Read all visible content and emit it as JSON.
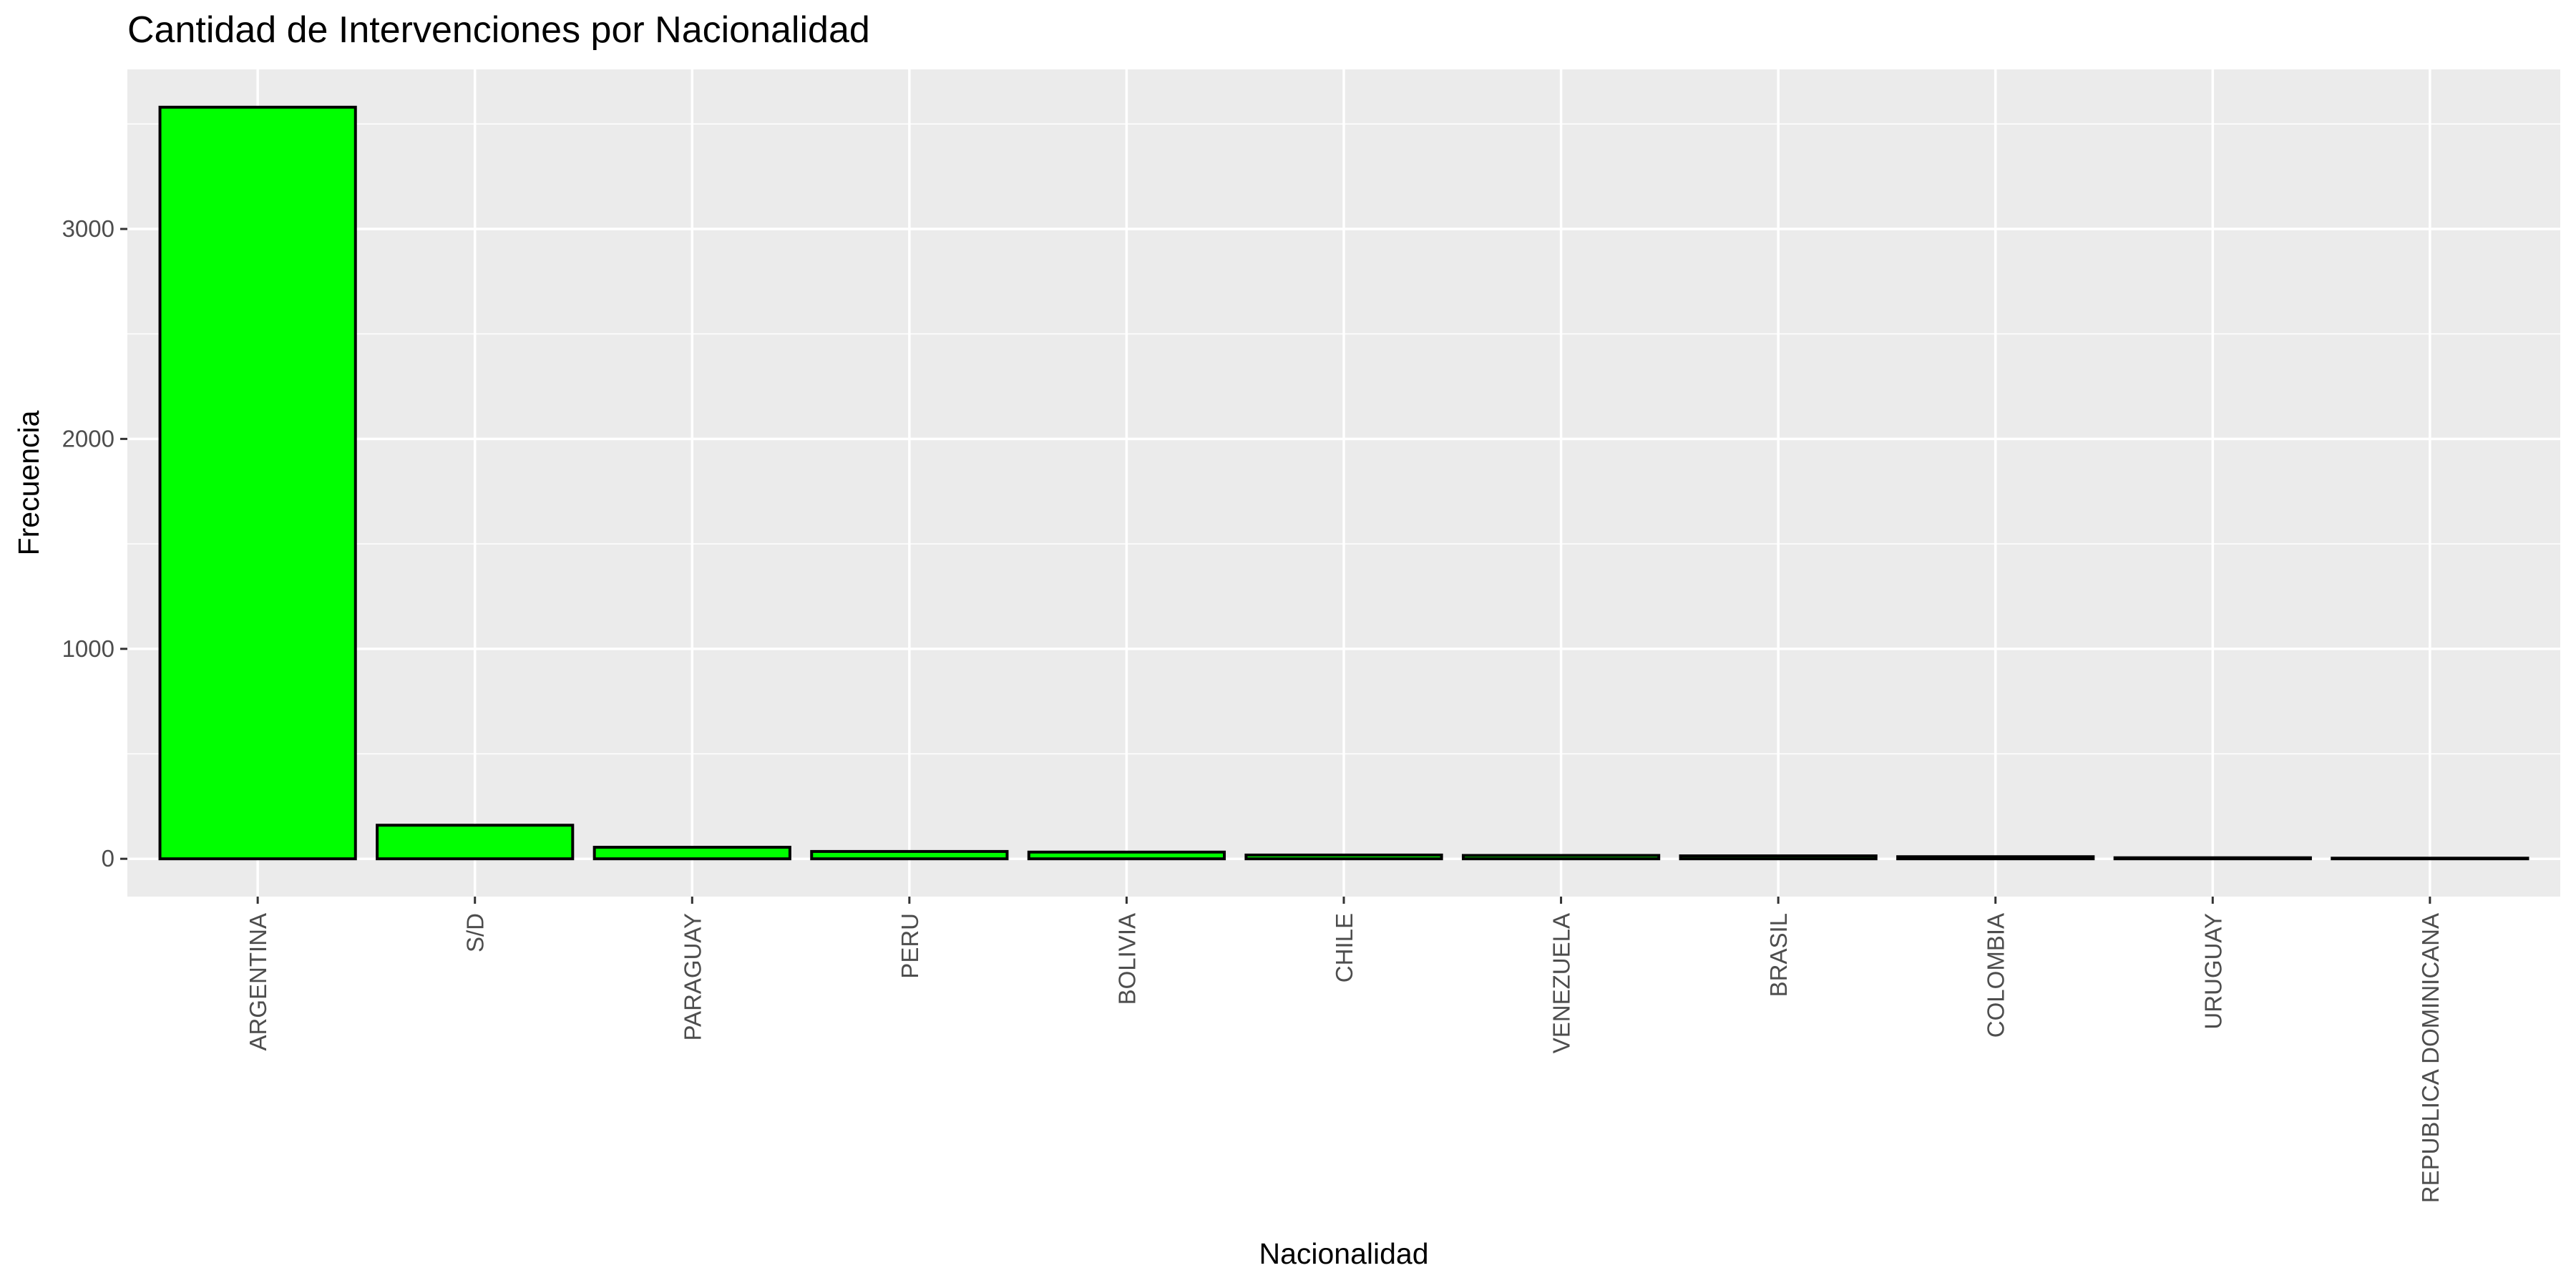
{
  "chart_data": {
    "type": "bar",
    "title": "Cantidad de Intervenciones por Nacionalidad",
    "xlabel": "Nacionalidad",
    "ylabel": "Frecuencia",
    "categories": [
      "ARGENTINA",
      "S/D",
      "PARAGUAY",
      "PERU",
      "BOLIVIA",
      "CHILE",
      "VENEZUELA",
      "BRASIL",
      "COLOMBIA",
      "URUGUAY",
      "REPUBLICA DOMINICANA"
    ],
    "values": [
      3580,
      160,
      55,
      35,
      32,
      18,
      16,
      14,
      10,
      5,
      3
    ],
    "ylim": [
      -180,
      3760
    ],
    "yticks": [
      0,
      1000,
      2000,
      3000
    ],
    "ytick_labels": [
      "0",
      "1000",
      "2000",
      "3000"
    ],
    "grid": true,
    "legend": "none",
    "colors": {
      "bar_fill": "#00ff00",
      "bar_stroke": "#000000",
      "panel_background": "#ebebeb",
      "grid_line": "#ffffff",
      "tick_label": "#4d4d4d",
      "tick_mark": "#333333"
    }
  }
}
